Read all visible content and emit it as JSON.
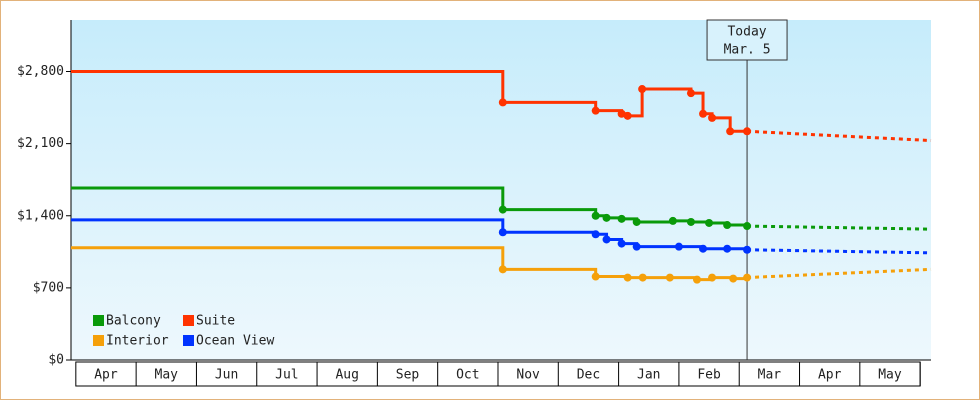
{
  "chart_data": {
    "type": "step-line",
    "xlim": [
      -0.08,
      14.18
    ],
    "ylim": [
      0,
      3300
    ],
    "xticks": [
      {
        "value": 0.5,
        "label": "Apr"
      },
      {
        "value": 1.5,
        "label": "May"
      },
      {
        "value": 2.5,
        "label": "Jun"
      },
      {
        "value": 3.5,
        "label": "Jul"
      },
      {
        "value": 4.5,
        "label": "Aug"
      },
      {
        "value": 5.5,
        "label": "Sep"
      },
      {
        "value": 6.5,
        "label": "Oct"
      },
      {
        "value": 7.5,
        "label": "Nov"
      },
      {
        "value": 8.5,
        "label": "Dec"
      },
      {
        "value": 9.5,
        "label": "Jan"
      },
      {
        "value": 10.5,
        "label": "Feb"
      },
      {
        "value": 11.5,
        "label": "Mar"
      },
      {
        "value": 12.5,
        "label": "Apr"
      },
      {
        "value": 13.5,
        "label": "May"
      }
    ],
    "yticks": [
      {
        "value": 0,
        "label": "$0"
      },
      {
        "value": 700,
        "label": "$700"
      },
      {
        "value": 1400,
        "label": "$1,400"
      },
      {
        "value": 2100,
        "label": "$2,100"
      },
      {
        "value": 2800,
        "label": "$2,800"
      }
    ],
    "legend": "lower-left",
    "today": {
      "x": 11.13,
      "label": [
        "Today",
        "Mar. 5"
      ]
    },
    "series": [
      {
        "name": "Balcony",
        "color": "#0a9a0a",
        "x": [
          -0.08,
          7.08,
          8.62,
          8.8,
          9.05,
          9.3,
          9.9,
          10.2,
          10.5,
          10.8,
          11.13
        ],
        "values": [
          1670,
          1460,
          1400,
          1380,
          1370,
          1340,
          1350,
          1340,
          1330,
          1310,
          1300
        ],
        "forecast": {
          "x": [
            11.13,
            14.18
          ],
          "values": [
            1300,
            1270
          ]
        }
      },
      {
        "name": "Suite",
        "color": "#ff3300",
        "x": [
          -0.08,
          7.08,
          8.62,
          9.05,
          9.15,
          9.39,
          10.2,
          10.4,
          10.55,
          10.85,
          11.13
        ],
        "values": [
          2800,
          2500,
          2420,
          2390,
          2370,
          2630,
          2590,
          2390,
          2350,
          2220,
          2220
        ],
        "forecast": {
          "x": [
            11.13,
            14.18
          ],
          "values": [
            2220,
            2130
          ]
        }
      },
      {
        "name": "Interior",
        "color": "#f5a00a",
        "x": [
          -0.08,
          7.08,
          8.62,
          9.15,
          9.4,
          9.85,
          10.3,
          10.55,
          10.9,
          11.13
        ],
        "values": [
          1090,
          880,
          810,
          800,
          800,
          800,
          780,
          800,
          790,
          800
        ],
        "forecast": {
          "x": [
            11.13,
            14.18
          ],
          "values": [
            800,
            880
          ]
        }
      },
      {
        "name": "Ocean View",
        "color": "#0033ff",
        "x": [
          -0.08,
          7.08,
          8.62,
          8.8,
          9.05,
          9.3,
          10.0,
          10.4,
          10.8,
          11.13
        ],
        "values": [
          1360,
          1240,
          1220,
          1170,
          1130,
          1100,
          1100,
          1080,
          1080,
          1070
        ],
        "forecast": {
          "x": [
            11.13,
            14.18
          ],
          "values": [
            1070,
            1040
          ]
        }
      }
    ]
  }
}
